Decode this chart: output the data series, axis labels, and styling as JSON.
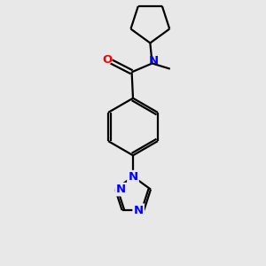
{
  "background_color": "#e8e8e8",
  "bond_color": "#000000",
  "nitrogen_color": "#0000ff",
  "oxygen_color": "#ff0000",
  "figsize": [
    3.0,
    3.0
  ],
  "dpi": 100,
  "xlim": [
    0,
    10
  ],
  "ylim": [
    0,
    10.5
  ]
}
